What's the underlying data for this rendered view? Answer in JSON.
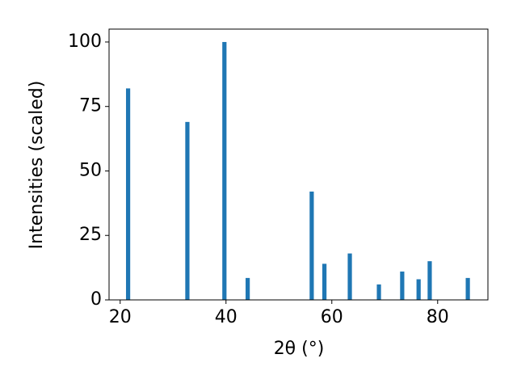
{
  "chart_data": {
    "type": "bar",
    "x_label": "2θ (°)",
    "y_label": "Intensities (scaled)",
    "x": [
      21.5,
      32.7,
      39.7,
      44.1,
      56.2,
      58.6,
      63.4,
      68.9,
      73.3,
      76.4,
      78.5,
      85.7
    ],
    "values": [
      82,
      69,
      100,
      8.5,
      42,
      14,
      18,
      6,
      11,
      8,
      15,
      8.5
    ],
    "color": "#1f77b4",
    "xlim": [
      17.9,
      89.5
    ],
    "xticks": [
      20,
      40,
      60,
      80
    ],
    "ylim": [
      0,
      105
    ],
    "yticks": [
      0,
      25,
      50,
      75,
      100
    ]
  }
}
